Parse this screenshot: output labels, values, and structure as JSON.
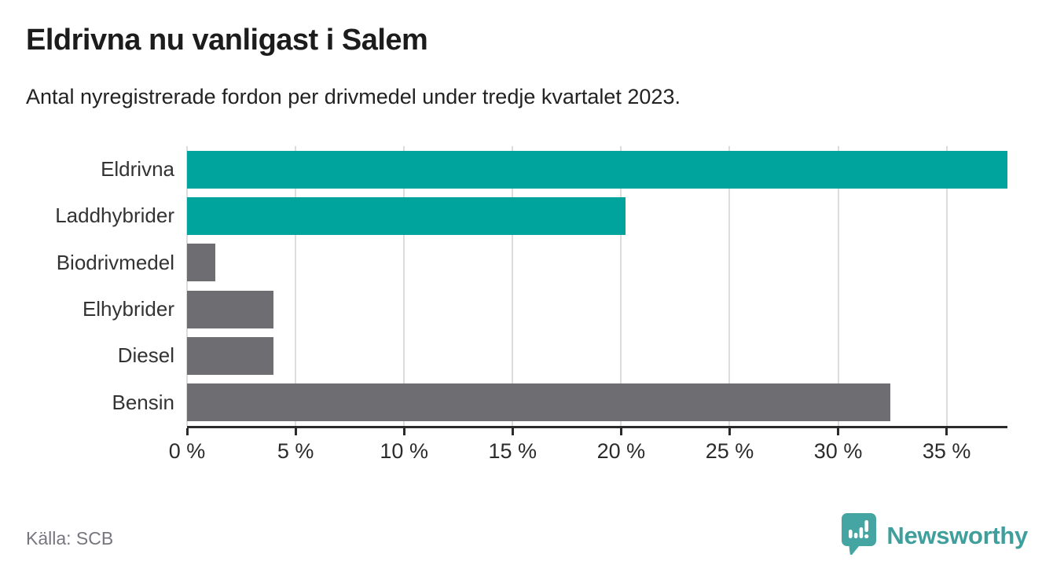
{
  "header": {
    "title": "Eldrivna nu vanligast i Salem",
    "subtitle": "Antal nyregistrerade fordon per drivmedel under tredje kvartalet 2023."
  },
  "chart_data": {
    "type": "bar",
    "orientation": "horizontal",
    "title": "Eldrivna nu vanligast i Salem",
    "subtitle": "Antal nyregistrerade fordon per drivmedel under tredje kvartalet 2023.",
    "categories": [
      "Eldrivna",
      "Laddhybrider",
      "Biodrivmedel",
      "Elhybrider",
      "Diesel",
      "Bensin"
    ],
    "values": [
      37.8,
      20.2,
      1.3,
      4.0,
      4.0,
      32.4
    ],
    "unit": "%",
    "xlim": [
      0,
      37.8
    ],
    "x_ticks": [
      0,
      5,
      10,
      15,
      20,
      25,
      30,
      35
    ],
    "x_tick_labels": [
      "0 %",
      "5 %",
      "10 %",
      "15 %",
      "20 %",
      "25 %",
      "30 %",
      "35 %"
    ],
    "bar_colors": [
      "#00a49c",
      "#00a49c",
      "#6d6d72",
      "#6d6d72",
      "#6d6d72",
      "#6d6d72"
    ],
    "highlight_color": "#00a49c",
    "default_color": "#6d6d72",
    "grid": true,
    "legend": "none"
  },
  "footer": {
    "source": "Källa: SCB",
    "brand": "Newsworthy",
    "brand_color": "#3f9f9c",
    "logo_mark_color": "#45a5a2"
  }
}
